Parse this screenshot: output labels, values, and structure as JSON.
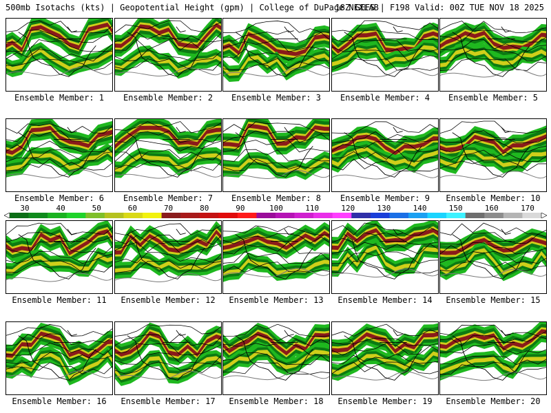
{
  "header": {
    "title_left": "500mb Isotachs (kts) | Geopotential Height (gpm) | College of DuPage NEXLAB",
    "title_right": "18Z GEFS | F198 Valid: 00Z TUE NOV 18 2025"
  },
  "members": [
    {
      "label": "Ensemble Member: 1"
    },
    {
      "label": "Ensemble Member: 2"
    },
    {
      "label": "Ensemble Member: 3"
    },
    {
      "label": "Ensemble Member: 4"
    },
    {
      "label": "Ensemble Member: 5"
    },
    {
      "label": "Ensemble Member: 6"
    },
    {
      "label": "Ensemble Member: 7"
    },
    {
      "label": "Ensemble Member: 8"
    },
    {
      "label": "Ensemble Member: 9"
    },
    {
      "label": "Ensemble Member: 10"
    },
    {
      "label": "Ensemble Member: 11"
    },
    {
      "label": "Ensemble Member: 12"
    },
    {
      "label": "Ensemble Member: 13"
    },
    {
      "label": "Ensemble Member: 14"
    },
    {
      "label": "Ensemble Member: 15"
    },
    {
      "label": "Ensemble Member: 16"
    },
    {
      "label": "Ensemble Member: 17"
    },
    {
      "label": "Ensemble Member: 18"
    },
    {
      "label": "Ensemble Member: 19"
    },
    {
      "label": "Ensemble Member: 20"
    }
  ],
  "colorbar": {
    "labels": [
      "30",
      "40",
      "50",
      "60",
      "70",
      "80",
      "90",
      "100",
      "110",
      "120",
      "130",
      "140",
      "150",
      "160",
      "170"
    ],
    "colors": [
      "#0b6e16",
      "#0f8a1c",
      "#19b21f",
      "#1fd32a",
      "#7fbf2a",
      "#b5c21f",
      "#d9d916",
      "#f2f20e",
      "#8a1c1c",
      "#a81a1a",
      "#c41212",
      "#e00b0b",
      "#ff1a1a",
      "#9a0d9a",
      "#b514b5",
      "#cf1fcf",
      "#e92ee9",
      "#ff3dff",
      "#2f2fa8",
      "#1a3fd9",
      "#1a6fe6",
      "#1aa0f2",
      "#1ad4ff",
      "#3df2ff",
      "#6e6e6e",
      "#8c8c8c",
      "#b4b4b4",
      "#d9d9d9"
    ]
  },
  "map_colors": {
    "fill_weak": "#1fb81f",
    "fill_mid": "#0c7a12",
    "fill_strong": "#cfcf1a",
    "fill_core": "#8a1a1a",
    "height_line": "#000000",
    "coast_line": "#000000",
    "contour_grey": "#7a7a7a"
  }
}
